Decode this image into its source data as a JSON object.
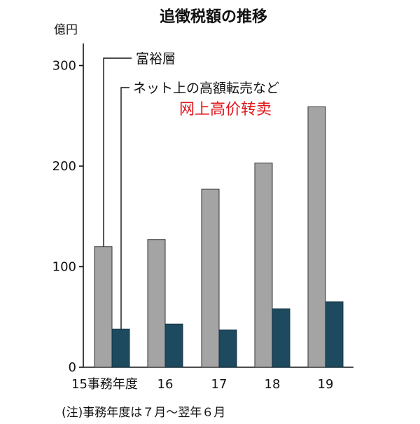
{
  "chart_data": {
    "type": "bar",
    "title": "追徴税額の推移",
    "ylabel": "億円",
    "ylim": [
      0,
      320
    ],
    "yticks": [
      "0",
      "100",
      "200",
      "300"
    ],
    "categories": [
      "15事務年度",
      "16",
      "17",
      "18",
      "19"
    ],
    "series": [
      {
        "name": "富裕層",
        "values": [
          120,
          127,
          177,
          203,
          259
        ],
        "color": "#a4a4a4"
      },
      {
        "name": "ネット上の高額転売など",
        "values": [
          38,
          43,
          37,
          58,
          65
        ],
        "color": "#1d4a5e"
      }
    ],
    "annotation": "网上高价转卖",
    "note": "(注)事務年度は７月〜翌年６月",
    "grid": false,
    "legend": "top-left"
  }
}
